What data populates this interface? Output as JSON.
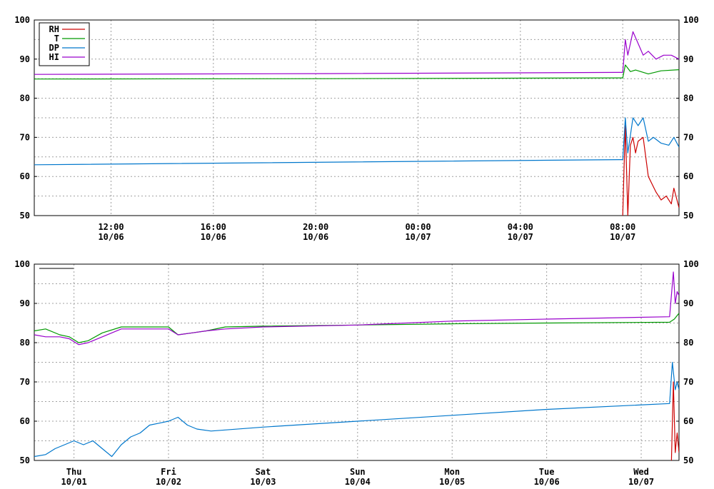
{
  "chart_data": [
    {
      "type": "line",
      "title": "",
      "ylim": [
        50,
        100
      ],
      "y_ticks": [
        50,
        60,
        70,
        80,
        90,
        100
      ],
      "x_unit": "hours since 10/06 09:00",
      "xlim": [
        0,
        25.2
      ],
      "x_ticks": [
        {
          "x": 3,
          "time": "12:00",
          "date": "10/06"
        },
        {
          "x": 7,
          "time": "16:00",
          "date": "10/06"
        },
        {
          "x": 11,
          "time": "20:00",
          "date": "10/06"
        },
        {
          "x": 15,
          "time": "00:00",
          "date": "10/07"
        },
        {
          "x": 19,
          "time": "04:00",
          "date": "10/07"
        },
        {
          "x": 23,
          "time": "08:00",
          "date": "10/07"
        }
      ],
      "grid": true,
      "legend": {
        "position": "top-left",
        "visible": true
      },
      "series": [
        {
          "name": "RH",
          "color": "#cc0000",
          "x": [
            23.0,
            23.05,
            23.1,
            23.2,
            23.3,
            23.4,
            23.5,
            23.6,
            23.8,
            24.0,
            24.3,
            24.5,
            24.7,
            24.9,
            25.0,
            25.2
          ],
          "y": [
            50,
            62,
            73,
            50,
            68,
            70,
            66,
            69,
            70,
            60,
            56,
            54,
            55,
            53,
            57,
            52
          ]
        },
        {
          "name": "T",
          "color": "#009900",
          "x": [
            0,
            11.5,
            22.9,
            23.0,
            23.1,
            23.3,
            23.5,
            24.0,
            24.5,
            25.2
          ],
          "y": [
            84.9,
            85.0,
            85.2,
            85.2,
            88.5,
            86.8,
            87.2,
            86.2,
            87.0,
            87.3
          ]
        },
        {
          "name": "DP",
          "color": "#0077cc",
          "x": [
            0,
            22.9,
            23.0,
            23.1,
            23.2,
            23.4,
            23.6,
            23.8,
            24.0,
            24.2,
            24.5,
            24.8,
            25.0,
            25.2
          ],
          "y": [
            63.0,
            64.3,
            64.3,
            75.0,
            66.0,
            75.0,
            73.0,
            75.0,
            69.0,
            70.0,
            68.5,
            68.0,
            70.0,
            67.5
          ]
        },
        {
          "name": "HI",
          "color": "#9900cc",
          "x": [
            0,
            11.5,
            22.9,
            23.0,
            23.1,
            23.2,
            23.4,
            23.6,
            23.8,
            24.0,
            24.3,
            24.6,
            24.9,
            25.2
          ],
          "y": [
            86.1,
            86.3,
            86.6,
            86.6,
            95.0,
            91.0,
            97.0,
            94.0,
            91.0,
            92.0,
            90.0,
            91.0,
            91.0,
            90.0
          ]
        }
      ]
    },
    {
      "type": "line",
      "title": "",
      "ylim": [
        50,
        100
      ],
      "y_ticks": [
        50,
        60,
        70,
        80,
        90,
        100
      ],
      "x_unit": "days since 09/30 00:00",
      "xlim": [
        0.58,
        7.4
      ],
      "x_ticks": [
        {
          "x": 1.0,
          "time": "Thu",
          "date": "10/01"
        },
        {
          "x": 2.0,
          "time": "Fri",
          "date": "10/02"
        },
        {
          "x": 3.0,
          "time": "Sat",
          "date": "10/03"
        },
        {
          "x": 4.0,
          "time": "Sun",
          "date": "10/04"
        },
        {
          "x": 5.0,
          "time": "Mon",
          "date": "10/05"
        },
        {
          "x": 6.0,
          "time": "Tue",
          "date": "10/06"
        },
        {
          "x": 7.0,
          "time": "Wed",
          "date": "10/07"
        }
      ],
      "grid": true,
      "legend": {
        "position": "top-left",
        "visible": false
      },
      "series": [
        {
          "name": "T",
          "color": "#009900",
          "x": [
            0.58,
            0.7,
            0.85,
            0.95,
            1.05,
            1.15,
            1.3,
            1.5,
            1.7,
            1.85,
            2.0,
            2.1,
            2.25,
            2.4,
            2.6,
            3.0,
            4.0,
            5.0,
            6.0,
            7.3,
            7.35,
            7.4
          ],
          "y": [
            83,
            83.5,
            82,
            81.5,
            80,
            80.5,
            82.5,
            84,
            84,
            84,
            84,
            82,
            82.5,
            83,
            84,
            84.2,
            84.5,
            84.8,
            85,
            85.2,
            86,
            87.5
          ]
        },
        {
          "name": "HI",
          "color": "#9900cc",
          "x": [
            0.58,
            0.7,
            0.85,
            0.95,
            1.05,
            1.15,
            1.3,
            1.5,
            1.7,
            1.85,
            2.0,
            2.1,
            2.25,
            2.4,
            2.6,
            3.0,
            4.0,
            5.0,
            6.0,
            7.3,
            7.34,
            7.36,
            7.38,
            7.4
          ],
          "y": [
            82,
            81.5,
            81.5,
            81,
            79.5,
            80,
            81.5,
            83.5,
            83.5,
            83.5,
            83.5,
            82,
            82.5,
            83,
            83.5,
            84,
            84.5,
            85.5,
            86,
            86.6,
            98,
            90,
            93,
            92
          ]
        },
        {
          "name": "DP",
          "color": "#0077cc",
          "x": [
            0.58,
            0.7,
            0.8,
            0.9,
            1.0,
            1.1,
            1.2,
            1.3,
            1.4,
            1.5,
            1.6,
            1.7,
            1.8,
            1.9,
            2.0,
            2.1,
            2.2,
            2.3,
            2.45,
            3.0,
            4.0,
            5.0,
            6.0,
            7.3,
            7.33,
            7.36,
            7.38,
            7.4
          ],
          "y": [
            51,
            51.5,
            53,
            54,
            55,
            54,
            55,
            53,
            51,
            54,
            56,
            57,
            59,
            59.5,
            60,
            61,
            59,
            58,
            57.5,
            58.5,
            60,
            61.5,
            63,
            64.5,
            75,
            68,
            70,
            68
          ]
        },
        {
          "name": "RH",
          "color": "#cc0000",
          "x": [
            7.32,
            7.34,
            7.36,
            7.38,
            7.4
          ],
          "y": [
            50,
            70,
            52,
            57,
            52
          ]
        }
      ]
    }
  ]
}
